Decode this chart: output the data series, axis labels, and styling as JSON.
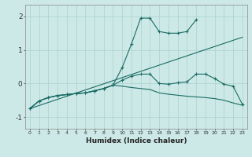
{
  "xlabel": "Humidex (Indice chaleur)",
  "bg_color": "#cce9e7",
  "grid_color": "#aad0ce",
  "line_color": "#1a6b64",
  "xlim": [
    -0.5,
    23.5
  ],
  "ylim": [
    -1.35,
    2.35
  ],
  "yticks": [
    -1,
    0,
    1,
    2
  ],
  "series": [
    {
      "x": [
        0,
        1,
        2,
        3,
        4,
        5,
        6,
        7,
        8,
        9,
        10,
        11,
        12,
        13,
        14,
        15,
        16,
        17,
        18
      ],
      "y": [
        -0.75,
        -0.52,
        -0.42,
        -0.36,
        -0.33,
        -0.3,
        -0.28,
        -0.22,
        -0.15,
        -0.05,
        0.48,
        1.18,
        1.95,
        1.95,
        1.55,
        1.5,
        1.5,
        1.55,
        1.9
      ],
      "marker": "+"
    },
    {
      "x": [
        0,
        1,
        2,
        3,
        4,
        5,
        6,
        7,
        8,
        9,
        10,
        11,
        12,
        13,
        14,
        15,
        16,
        17,
        18,
        19,
        20,
        21,
        22,
        23
      ],
      "y": [
        -0.75,
        -0.52,
        -0.42,
        -0.36,
        -0.33,
        -0.3,
        -0.28,
        -0.22,
        -0.15,
        -0.05,
        0.1,
        0.22,
        0.28,
        0.28,
        0.0,
        -0.02,
        0.02,
        0.05,
        0.28,
        0.28,
        0.15,
        -0.02,
        -0.08,
        -0.62
      ],
      "marker": "+"
    },
    {
      "x": [
        0,
        1,
        2,
        3,
        4,
        5,
        6,
        7,
        8,
        9,
        10,
        11,
        12,
        13,
        14,
        15,
        16,
        17,
        18,
        19,
        20,
        21,
        22,
        23
      ],
      "y": [
        -0.75,
        -0.52,
        -0.42,
        -0.36,
        -0.33,
        -0.3,
        -0.28,
        -0.22,
        -0.15,
        -0.05,
        -0.08,
        -0.12,
        -0.15,
        -0.18,
        -0.28,
        -0.32,
        -0.35,
        -0.38,
        -0.4,
        -0.42,
        -0.45,
        -0.5,
        -0.58,
        -0.65
      ],
      "marker": null
    },
    {
      "x": [
        0,
        23
      ],
      "y": [
        -0.75,
        1.38
      ],
      "marker": null
    }
  ]
}
